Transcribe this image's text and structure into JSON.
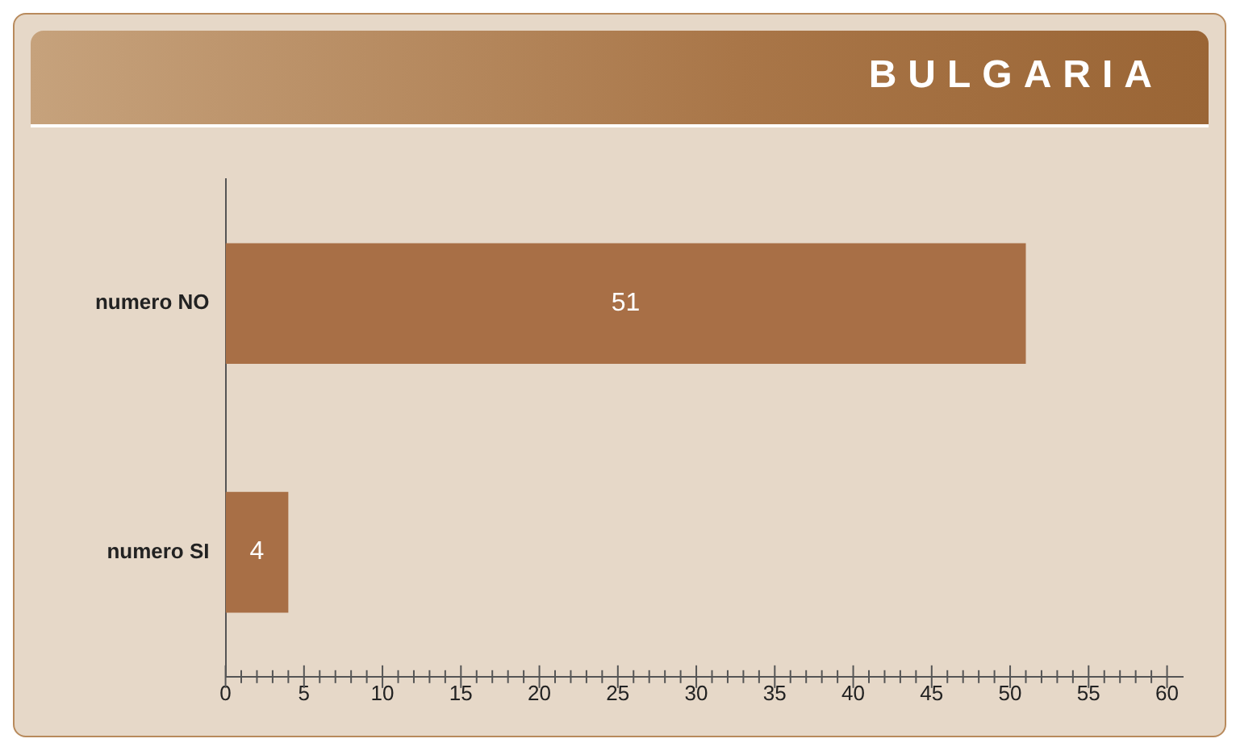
{
  "chart_data": {
    "type": "bar",
    "orientation": "horizontal",
    "title": "BULGARIA",
    "categories": [
      "numero NO",
      "numero SI"
    ],
    "values": [
      51,
      4
    ],
    "color": "#a86f46",
    "xlim": [
      0,
      61
    ],
    "xticks": [
      0,
      {
        "value": 1,
        "label": null
      },
      {
        "value": 2,
        "label": null
      },
      {
        "value": 3,
        "label": null
      },
      {
        "value": 4,
        "label": null
      },
      5,
      {
        "value": 6,
        "label": null
      },
      {
        "value": 7,
        "label": null
      },
      {
        "value": 8,
        "label": null
      },
      {
        "value": 9,
        "label": null
      },
      10,
      {
        "value": 11,
        "label": null
      },
      {
        "value": 12,
        "label": null
      },
      {
        "value": 13,
        "label": null
      },
      {
        "value": 14,
        "label": null
      },
      15,
      {
        "value": 16,
        "label": null
      },
      {
        "value": 17,
        "label": null
      },
      {
        "value": 18,
        "label": null
      },
      {
        "value": 19,
        "label": null
      },
      20,
      {
        "value": 21,
        "label": null
      },
      {
        "value": 22,
        "label": null
      },
      {
        "value": 23,
        "label": null
      },
      {
        "value": 24,
        "label": null
      },
      25,
      {
        "value": 26,
        "label": null
      },
      {
        "value": 27,
        "label": null
      },
      {
        "value": 28,
        "label": null
      },
      {
        "value": 29,
        "label": null
      },
      30,
      {
        "value": 31,
        "label": null
      },
      {
        "value": 32,
        "label": null
      },
      {
        "value": 33,
        "label": null
      },
      {
        "value": 34,
        "label": null
      },
      35,
      {
        "value": 36,
        "label": null
      },
      {
        "value": 37,
        "label": null
      },
      {
        "value": 38,
        "label": null
      },
      {
        "value": 39,
        "label": null
      },
      40,
      {
        "value": 41,
        "label": null
      },
      {
        "value": 42,
        "label": null
      },
      {
        "value": 43,
        "label": null
      },
      {
        "value": 44,
        "label": null
      },
      45,
      {
        "value": 46,
        "label": null
      },
      {
        "value": 47,
        "label": null
      },
      {
        "value": 48,
        "label": null
      },
      {
        "value": 49,
        "label": null
      },
      50,
      {
        "value": 51,
        "label": null
      },
      {
        "value": 52,
        "label": null
      },
      {
        "value": 53,
        "label": null
      },
      {
        "value": 54,
        "label": null
      },
      55,
      {
        "value": 56,
        "label": null
      },
      {
        "value": 57,
        "label": null
      },
      {
        "value": 58,
        "label": null
      },
      {
        "value": 59,
        "label": null
      },
      60
    ],
    "grid": false,
    "legend": false,
    "data_labels": true
  }
}
